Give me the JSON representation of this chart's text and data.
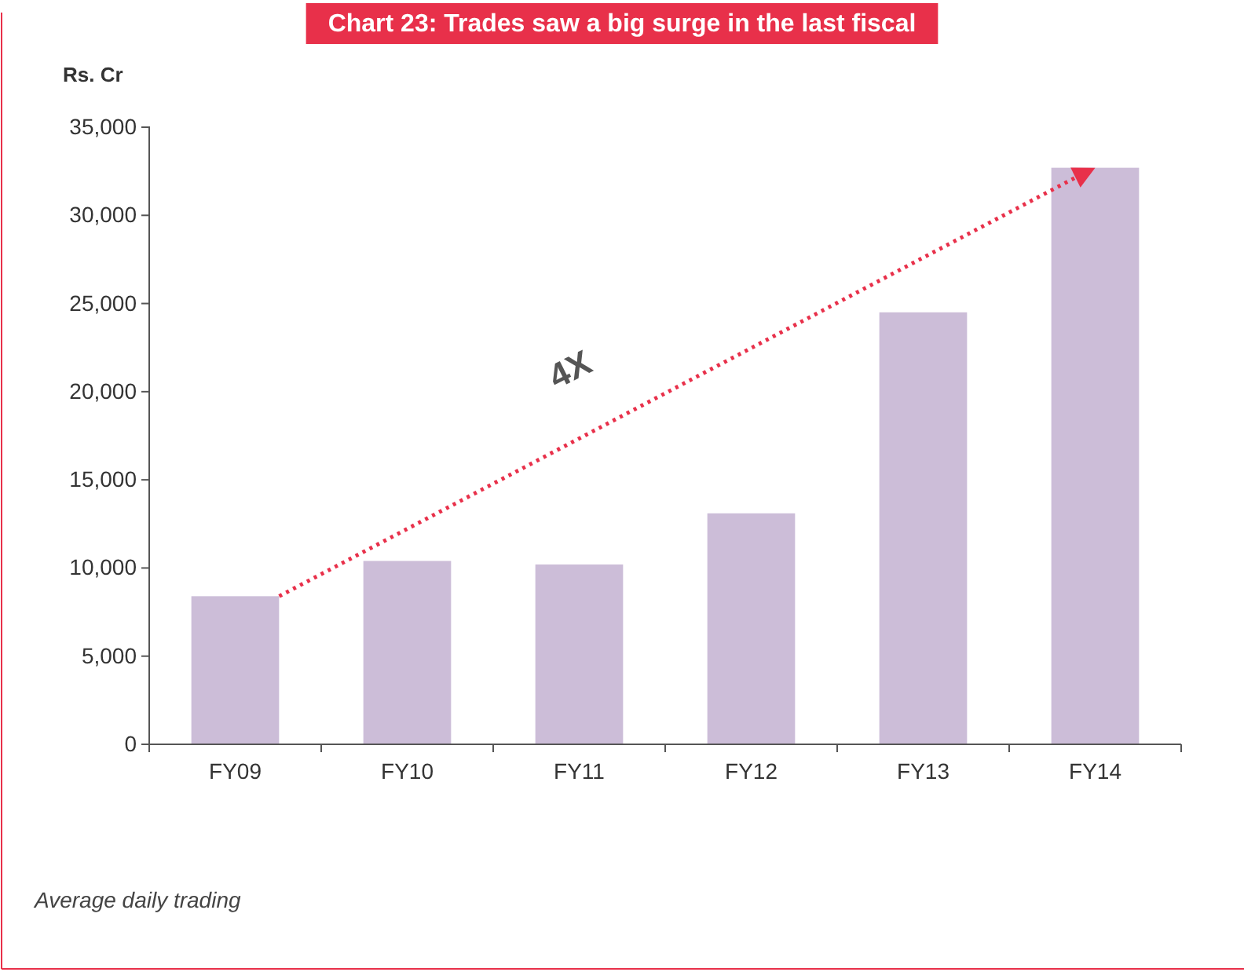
{
  "chart_data": {
    "type": "bar",
    "title": "Chart 23: Trades saw a big surge in the last fiscal",
    "ylabel": "Rs. Cr",
    "categories": [
      "FY09",
      "FY10",
      "FY11",
      "FY12",
      "FY13",
      "FY14"
    ],
    "values": [
      8400,
      10400,
      10200,
      13100,
      24500,
      32700
    ],
    "color": "#ccbdd8",
    "ylim": [
      0,
      35000
    ],
    "yticks": [
      {
        "value": 0,
        "label": "0"
      },
      {
        "value": 5000,
        "label": "5,000"
      },
      {
        "value": 10000,
        "label": "10,000"
      },
      {
        "value": 15000,
        "label": "15,000"
      },
      {
        "value": 20000,
        "label": "20,000"
      },
      {
        "value": 25000,
        "label": "25,000"
      },
      {
        "value": 30000,
        "label": "30,000"
      },
      {
        "value": 35000,
        "label": "35,000"
      }
    ],
    "grid": false,
    "annotations": [
      "4X",
      "Average daily trading"
    ]
  }
}
